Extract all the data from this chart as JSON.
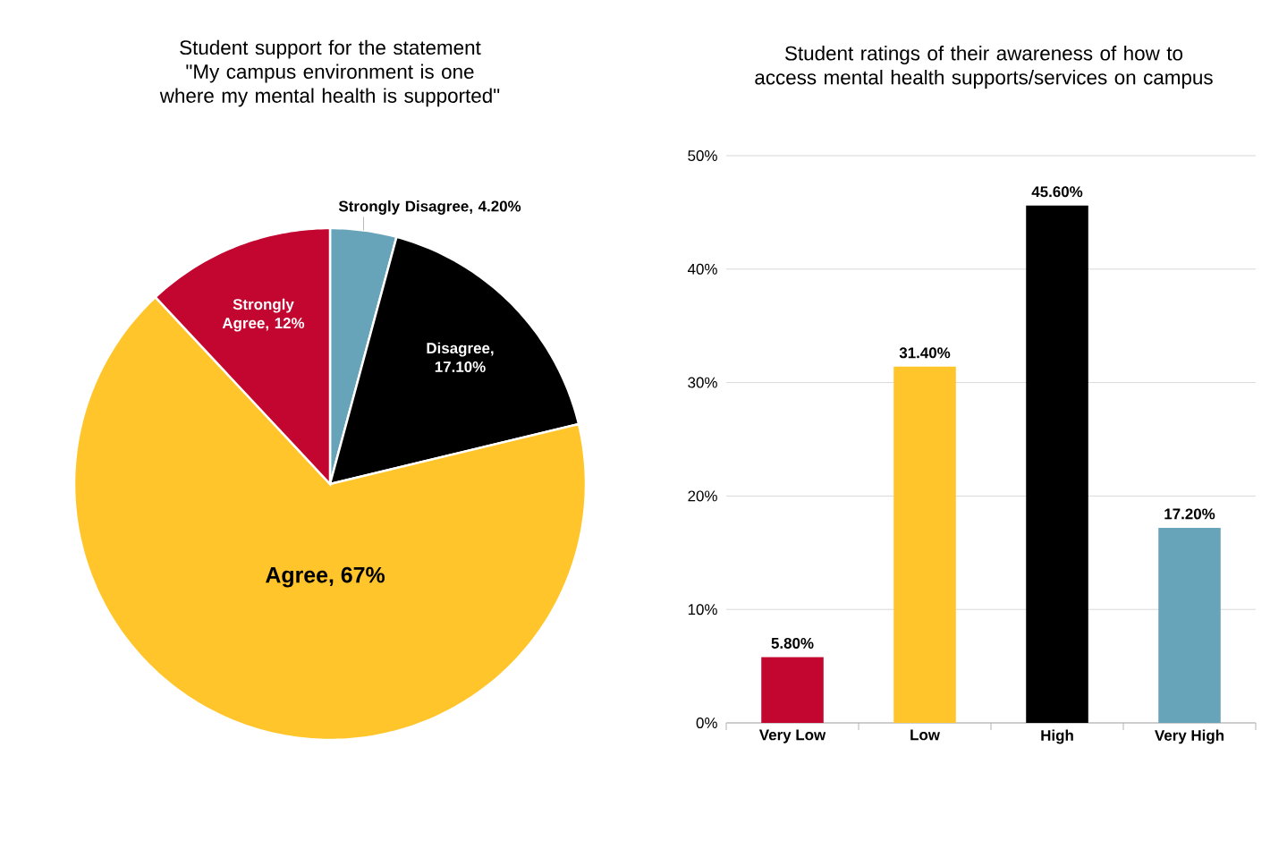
{
  "chart_data": [
    {
      "type": "pie",
      "title": "Student support for the statement \"My campus environment is one where my mental health is supported\"",
      "categories": [
        "Strongly Disagree",
        "Disagree",
        "Agree",
        "Strongly Agree"
      ],
      "values": [
        4.2,
        17.1,
        67,
        12
      ],
      "colors": [
        "#67a4b9",
        "#000000",
        "#ffc52b",
        "#c3062f"
      ],
      "value_labels": [
        ", 4.20%",
        ", 17.10%",
        ", 67%",
        ", 12%"
      ]
    },
    {
      "type": "bar",
      "title": "Student ratings of their awareness of how to access mental health supports/services on campus",
      "categories": [
        "Very Low",
        "Low",
        "High",
        "Very High"
      ],
      "values": [
        5.8,
        31.4,
        45.6,
        17.2
      ],
      "colors": [
        "#c3062f",
        "#ffc52b",
        "#000000",
        "#67a4b9"
      ],
      "value_labels": [
        "5.80%",
        "31.40%",
        "45.60%",
        "17.20%"
      ],
      "ylim": [
        0,
        50
      ],
      "yticks": [
        {
          "value": 0,
          "label": "0%"
        },
        {
          "value": 10,
          "label": "10%"
        },
        {
          "value": 20,
          "label": "20%"
        },
        {
          "value": 30,
          "label": "30%"
        },
        {
          "value": 40,
          "label": "40%"
        },
        {
          "value": 50,
          "label": "50%"
        }
      ],
      "grid": "y"
    }
  ]
}
